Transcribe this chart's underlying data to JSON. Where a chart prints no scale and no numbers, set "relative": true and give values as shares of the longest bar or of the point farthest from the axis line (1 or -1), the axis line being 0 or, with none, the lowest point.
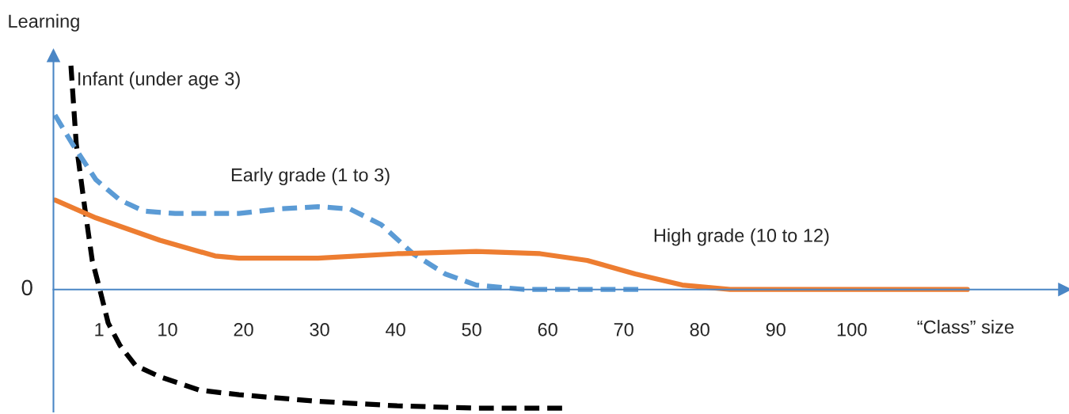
{
  "chart_data": {
    "type": "line",
    "relative": true,
    "ylabel": "Learning",
    "xlabel": "“Class” size",
    "xlim": [
      -5,
      128
    ],
    "xticks": [
      1,
      10,
      20,
      30,
      40,
      50,
      60,
      70,
      80,
      90,
      100
    ],
    "grid": false,
    "legend": false,
    "marker": "none",
    "annotations": [
      "0"
    ],
    "series": [
      {
        "name": "Infant (under age 3)",
        "color": "#000000",
        "line_style": "dashed",
        "x": [
          -2.7,
          -2.0,
          -0.9,
          0.1,
          1.1,
          2.2,
          3.75,
          5.8,
          9.0,
          14.2,
          19.4,
          29.8,
          40.2,
          50.6,
          62.1
        ],
        "values": [
          1.0,
          0.65,
          0.37,
          0.13,
          0.0,
          -0.15,
          -0.25,
          -0.34,
          -0.39,
          -0.45,
          -0.47,
          -0.5,
          -0.52,
          -0.53,
          -0.53
        ]
      },
      {
        "name": "Early grade (1 to 3)",
        "color": "#5b9bd5",
        "line_style": "dashed",
        "x": [
          -4.8,
          -2.5,
          0.6,
          3.75,
          6.9,
          11.0,
          19.4,
          24.6,
          29.8,
          34.0,
          38.1,
          42.3,
          46.5,
          50.6,
          56.9,
          63.1,
          72.0
        ],
        "values": [
          0.78,
          0.65,
          0.49,
          0.4,
          0.35,
          0.34,
          0.34,
          0.36,
          0.37,
          0.36,
          0.29,
          0.16,
          0.07,
          0.02,
          0.0,
          0.0,
          0.0
        ]
      },
      {
        "name": "High grade (10 to 12)",
        "color": "#ed7d31",
        "line_style": "solid",
        "x": [
          -4.8,
          0.6,
          9.0,
          16.25,
          19.4,
          29.8,
          40.2,
          50.6,
          59.0,
          65.2,
          71.5,
          77.7,
          84.0,
          92.3,
          102.7,
          115.2
        ],
        "values": [
          0.4,
          0.32,
          0.22,
          0.15,
          0.14,
          0.14,
          0.16,
          0.17,
          0.16,
          0.13,
          0.07,
          0.02,
          0.0,
          0.0,
          0.0,
          0.0
        ]
      }
    ]
  }
}
